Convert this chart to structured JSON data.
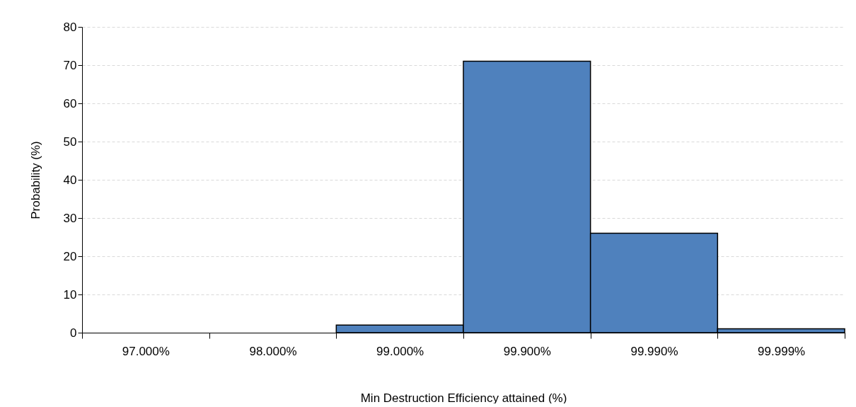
{
  "chart_data": {
    "type": "bar",
    "xlabel": "Min Destruction Efficiency attained (%)",
    "ylabel": "Probability (%)",
    "categories": [
      "97.000%",
      "98.000%",
      "99.000%",
      "99.900%",
      "99.990%",
      "99.999%"
    ],
    "values": [
      0,
      0,
      2,
      71,
      26,
      1
    ],
    "color": "#4f81bd",
    "ylim": [
      0,
      80
    ],
    "yticks": [
      0,
      10,
      20,
      30,
      40,
      50,
      60,
      70,
      80
    ],
    "grid": "y"
  }
}
